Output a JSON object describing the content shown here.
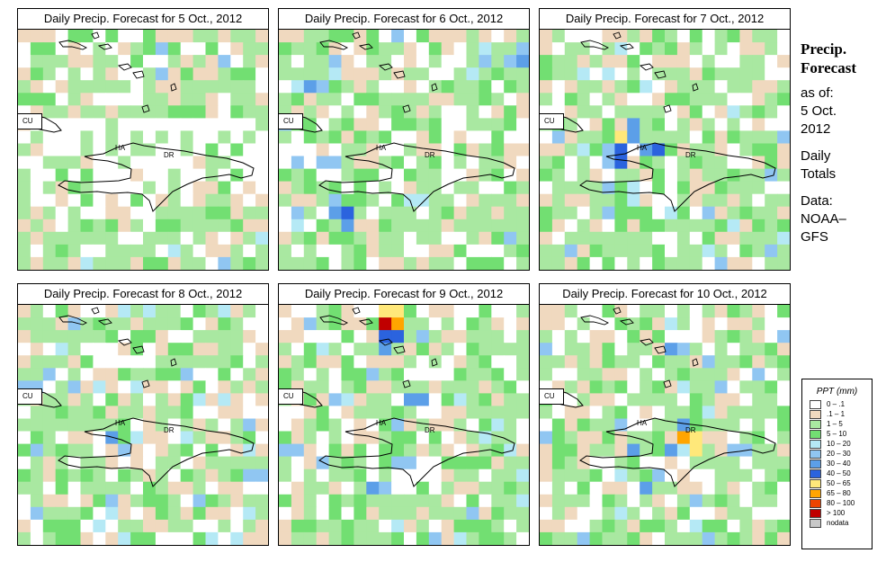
{
  "panels": [
    {
      "title": "Daily Precip. Forecast for  5 Oct., 2012",
      "seed": 11,
      "wet": 0.15,
      "hot": []
    },
    {
      "title": "Daily Precip. Forecast for  6 Oct., 2012",
      "seed": 23,
      "wet": 0.35,
      "hot": [
        [
          4,
          13,
          5
        ],
        [
          5,
          14,
          7
        ],
        [
          4,
          14,
          6
        ],
        [
          5,
          15,
          6
        ],
        [
          3,
          4,
          5
        ],
        [
          2,
          4,
          6
        ],
        [
          18,
          2,
          5
        ],
        [
          19,
          2,
          6
        ]
      ]
    },
    {
      "title": "Daily Precip. Forecast for  7 Oct., 2012",
      "seed": 37,
      "wet": 0.3,
      "hot": [
        [
          6,
          8,
          8
        ],
        [
          5,
          9,
          5
        ],
        [
          6,
          9,
          7
        ],
        [
          7,
          8,
          6
        ],
        [
          7,
          7,
          6
        ],
        [
          8,
          9,
          6
        ],
        [
          9,
          9,
          7
        ],
        [
          6,
          10,
          7
        ]
      ]
    },
    {
      "title": "Daily Precip. Forecast for  8 Oct., 2012",
      "seed": 41,
      "wet": 0.4,
      "hot": [
        [
          7,
          10,
          6
        ],
        [
          8,
          11,
          5
        ],
        [
          0,
          6,
          5
        ],
        [
          1,
          6,
          5
        ]
      ]
    },
    {
      "title": "Daily Precip. Forecast for  9 Oct., 2012",
      "seed": 53,
      "wet": 0.38,
      "hot": [
        [
          8,
          1,
          11
        ],
        [
          9,
          1,
          9
        ],
        [
          8,
          0,
          8
        ],
        [
          9,
          0,
          8
        ],
        [
          8,
          2,
          7
        ],
        [
          9,
          2,
          7
        ],
        [
          8,
          3,
          6
        ],
        [
          10,
          7,
          6
        ],
        [
          11,
          7,
          6
        ],
        [
          9,
          12,
          5
        ],
        [
          10,
          12,
          5
        ],
        [
          7,
          14,
          6
        ],
        [
          8,
          14,
          5
        ]
      ]
    },
    {
      "title": "Daily Precip. Forecast for  10 Oct., 2012",
      "seed": 67,
      "wet": 0.32,
      "hot": [
        [
          11,
          10,
          9
        ],
        [
          12,
          10,
          8
        ],
        [
          12,
          11,
          8
        ],
        [
          10,
          11,
          6
        ],
        [
          11,
          9,
          6
        ],
        [
          8,
          14,
          6
        ],
        [
          9,
          13,
          5
        ],
        [
          7,
          11,
          6
        ],
        [
          10,
          3,
          6
        ],
        [
          11,
          3,
          5
        ]
      ]
    }
  ],
  "labels": {
    "cu": "CU",
    "ha": "HA",
    "dr": "DR"
  },
  "side": {
    "title_line1": "Precip.",
    "title_line2": "Forecast",
    "asof": "as of:",
    "date1": "5 Oct.",
    "date2": "2012",
    "daily1": "Daily",
    "daily2": "Totals",
    "data1": "Data:",
    "data2": "NOAA–",
    "data3": "GFS"
  },
  "legend": {
    "title": "PPT (mm)",
    "items": [
      {
        "label": "0 – .1",
        "color": "#ffffff"
      },
      {
        "label": ".1 – 1",
        "color": "#f0d9bf"
      },
      {
        "label": "1 – 5",
        "color": "#a9e8a1"
      },
      {
        "label": "5 – 10",
        "color": "#72df72"
      },
      {
        "label": "10 – 20",
        "color": "#b5e9f5"
      },
      {
        "label": "20 – 30",
        "color": "#90c6f2"
      },
      {
        "label": "30 – 40",
        "color": "#5c9fe8"
      },
      {
        "label": "40 – 50",
        "color": "#2b63de"
      },
      {
        "label": "50 – 65",
        "color": "#ffe87a"
      },
      {
        "label": "65 – 80",
        "color": "#ffa500"
      },
      {
        "label": "80 – 100",
        "color": "#ee4400"
      },
      {
        "label": "> 100",
        "color": "#c00000"
      },
      {
        "label": "nodata",
        "color": "#c8c8c8"
      }
    ]
  }
}
